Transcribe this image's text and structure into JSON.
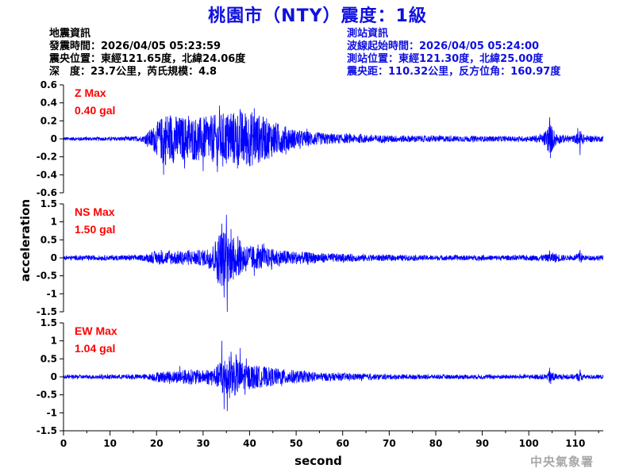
{
  "title": "桃園市（NTY）震度：1級",
  "event_info": {
    "heading": "地震資訊",
    "origin_time": "發震時間：2026/04/05 05:23:59",
    "epicenter": "震央位置：東經121.65度，北緯24.06度",
    "depth_magnitude": "深　度：23.7公里，芮氏規模：4.8"
  },
  "station_info": {
    "heading": "測站資訊",
    "wave_start": "波線起始時間：2026/04/05 05:24:00",
    "location": "測站位置：東經121.30度，北緯25.00度",
    "distance": "震央距：110.32公里，反方位角：160.97度"
  },
  "agency": "中央氣象署",
  "colors": {
    "title": "#1010e0",
    "trace": "#0000ff",
    "max_label": "#ff0000",
    "axis": "#000000",
    "agency": "#a8a8a8"
  },
  "chart_data": {
    "type": "line",
    "xlabel": "second",
    "ylabel": "acceleration",
    "xlim": [
      0,
      116
    ],
    "x_ticks": [
      "0",
      "10",
      "20",
      "30",
      "40",
      "50",
      "60",
      "70",
      "80",
      "90",
      "100",
      "110"
    ],
    "grid": false,
    "panels": [
      {
        "component": "Z",
        "max_label": "Z Max",
        "max_value": "0.40 gal",
        "ylim": [
          -0.6,
          0.6
        ],
        "y_ticks": [
          "0.6",
          "0.4",
          "0.2",
          "0",
          "-0.2",
          "-0.4",
          "-0.6"
        ],
        "y_tick_values": [
          0.6,
          0.4,
          0.2,
          0,
          -0.2,
          -0.4,
          -0.6
        ],
        "envelope_x": [
          0,
          10,
          17,
          19,
          22,
          25,
          30,
          35,
          40,
          45,
          50,
          55,
          60,
          70,
          80,
          90,
          100,
          103,
          104.5,
          106,
          108,
          110,
          111,
          112,
          116
        ],
        "envelope_amp": [
          0.02,
          0.02,
          0.03,
          0.12,
          0.3,
          0.25,
          0.24,
          0.3,
          0.32,
          0.2,
          0.1,
          0.07,
          0.05,
          0.04,
          0.035,
          0.03,
          0.03,
          0.05,
          0.18,
          0.06,
          0.04,
          0.04,
          0.1,
          0.04,
          0.03
        ],
        "spikes": [
          {
            "x": 21.5,
            "v": -0.4
          },
          {
            "x": 23,
            "v": 0.26
          },
          {
            "x": 26,
            "v": -0.33
          },
          {
            "x": 30,
            "v": -0.36
          },
          {
            "x": 33,
            "v": -0.3
          },
          {
            "x": 36,
            "v": 0.28
          },
          {
            "x": 38,
            "v": 0.33
          },
          {
            "x": 40,
            "v": -0.3
          },
          {
            "x": 41,
            "v": 0.34
          },
          {
            "x": 104.5,
            "v": 0.24
          },
          {
            "x": 104.8,
            "v": -0.15
          },
          {
            "x": 110.5,
            "v": 0.12
          },
          {
            "x": 111,
            "v": -0.18
          }
        ]
      },
      {
        "component": "NS",
        "max_label": "NS Max",
        "max_value": "1.50 gal",
        "ylim": [
          -1.5,
          1.5
        ],
        "y_ticks": [
          "1.5",
          "1",
          "0.5",
          "0",
          "-0.5",
          "-1",
          "-1.5"
        ],
        "y_tick_values": [
          1.5,
          1,
          0.5,
          0,
          -0.5,
          -1,
          -1.5
        ],
        "envelope_x": [
          0,
          10,
          17,
          20,
          25,
          30,
          32,
          34,
          35,
          37,
          40,
          45,
          50,
          55,
          60,
          70,
          80,
          90,
          100,
          104,
          105,
          108,
          110,
          111,
          112,
          116
        ],
        "envelope_amp": [
          0.06,
          0.07,
          0.08,
          0.18,
          0.2,
          0.22,
          0.35,
          0.85,
          0.7,
          0.55,
          0.35,
          0.25,
          0.18,
          0.14,
          0.11,
          0.08,
          0.07,
          0.07,
          0.07,
          0.1,
          0.15,
          0.07,
          0.08,
          0.18,
          0.07,
          0.07
        ],
        "spikes": [
          {
            "x": 33.2,
            "v": -0.7
          },
          {
            "x": 34,
            "v": 0.95
          },
          {
            "x": 34.5,
            "v": -1.1
          },
          {
            "x": 35,
            "v": 1.2
          },
          {
            "x": 35.2,
            "v": -1.5
          },
          {
            "x": 36,
            "v": 0.8
          },
          {
            "x": 36.5,
            "v": -0.6
          },
          {
            "x": 37.5,
            "v": 0.6
          },
          {
            "x": 41,
            "v": -0.5
          },
          {
            "x": 43,
            "v": 0.4
          },
          {
            "x": 104.5,
            "v": 0.2
          },
          {
            "x": 111,
            "v": 0.22
          }
        ]
      },
      {
        "component": "EW",
        "max_label": "EW Max",
        "max_value": "1.04 gal",
        "ylim": [
          -1.5,
          1.5
        ],
        "y_ticks": [
          "1.5",
          "1",
          "0.5",
          "0",
          "-0.5",
          "-1",
          "-1.5"
        ],
        "y_tick_values": [
          1.5,
          1,
          0.5,
          0,
          -0.5,
          -1,
          -1.5
        ],
        "envelope_x": [
          0,
          10,
          18,
          20,
          25,
          27,
          30,
          33,
          34,
          36,
          38,
          40,
          45,
          50,
          55,
          60,
          70,
          80,
          90,
          100,
          104,
          104.5,
          106,
          110,
          111,
          112,
          116
        ],
        "envelope_amp": [
          0.05,
          0.06,
          0.07,
          0.14,
          0.18,
          0.22,
          0.18,
          0.3,
          0.55,
          0.6,
          0.45,
          0.35,
          0.25,
          0.18,
          0.12,
          0.1,
          0.07,
          0.06,
          0.06,
          0.06,
          0.08,
          0.22,
          0.07,
          0.07,
          0.15,
          0.06,
          0.06
        ],
        "spikes": [
          {
            "x": 34,
            "v": 1.0
          },
          {
            "x": 34.5,
            "v": -0.9
          },
          {
            "x": 35.2,
            "v": -0.95
          },
          {
            "x": 36,
            "v": 0.7
          },
          {
            "x": 38,
            "v": 0.8
          },
          {
            "x": 39,
            "v": -0.5
          },
          {
            "x": 25,
            "v": 0.3
          },
          {
            "x": 104.5,
            "v": 0.25
          },
          {
            "x": 104.7,
            "v": -0.2
          },
          {
            "x": 111,
            "v": 0.2
          }
        ]
      }
    ]
  }
}
